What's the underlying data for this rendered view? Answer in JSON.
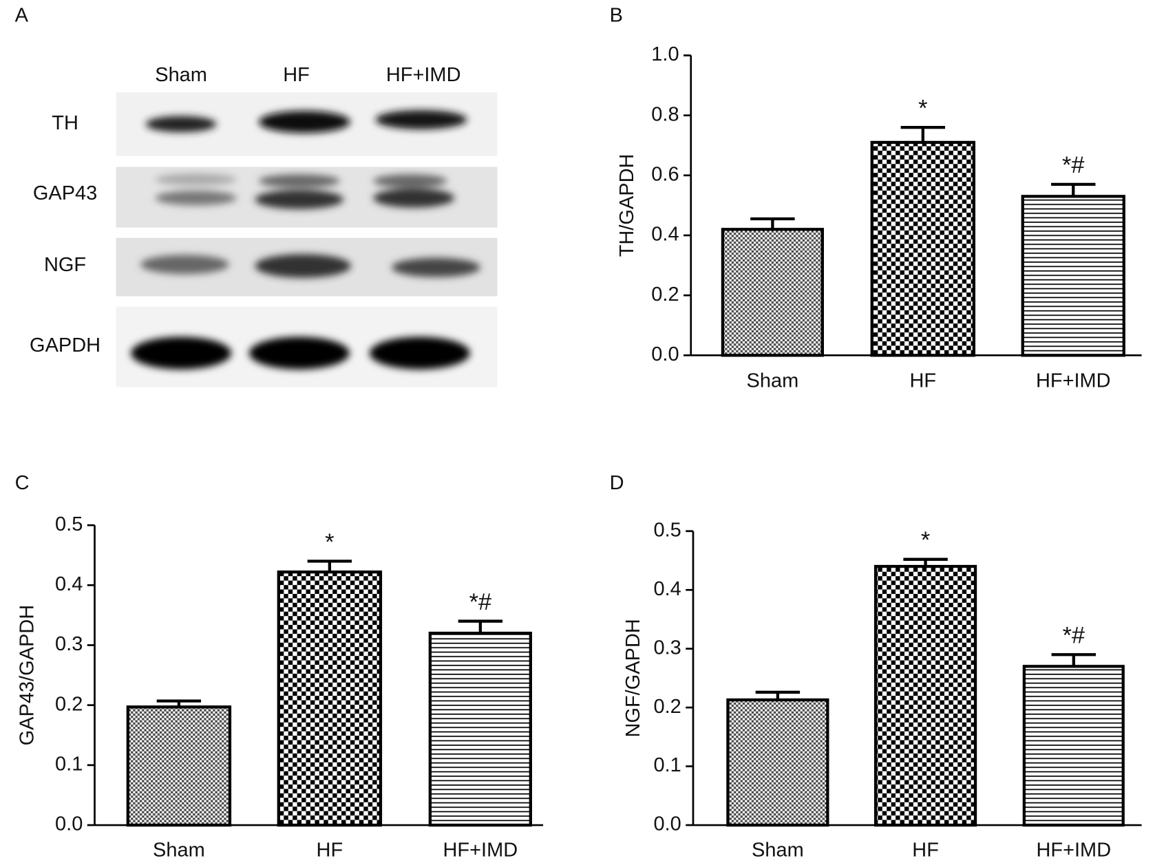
{
  "blot": {
    "panel_label": "A",
    "lanes": [
      "Sham",
      "HF",
      "HF+IMD"
    ],
    "rows": [
      "TH",
      "GAP43",
      "NGF",
      "GAPDH"
    ]
  },
  "chart_data": [
    {
      "type": "bar",
      "panel_label": "B",
      "ylabel": "TH/GAPDH",
      "categories": [
        "Sham",
        "HF",
        "HF+IMD"
      ],
      "values": [
        0.42,
        0.71,
        0.53
      ],
      "errors": [
        0.035,
        0.05,
        0.04
      ],
      "color": "#000000",
      "hatches": [
        "dense",
        "checker",
        "horizontal"
      ],
      "annotations": [
        {
          "text": "*",
          "x": "HF"
        },
        {
          "text": "*#",
          "x": "HF+IMD"
        }
      ],
      "ylim": [
        0,
        1
      ],
      "yticks": [
        {
          "value": 0,
          "label": "0.0"
        },
        0.2,
        0.4,
        0.6,
        0.8,
        {
          "value": 1,
          "label": "1.0"
        }
      ]
    },
    {
      "type": "bar",
      "panel_label": "C",
      "ylabel": "GAP43/GAPDH",
      "categories": [
        "Sham",
        "HF",
        "HF+IMD"
      ],
      "values": [
        0.197,
        0.422,
        0.32
      ],
      "errors": [
        0.01,
        0.018,
        0.02
      ],
      "color": "#000000",
      "hatches": [
        "dense",
        "checker",
        "horizontal"
      ],
      "annotations": [
        {
          "text": "*",
          "x": "HF"
        },
        {
          "text": "*#",
          "x": "HF+IMD"
        }
      ],
      "ylim": [
        0,
        0.5
      ],
      "yticks": [
        {
          "value": 0,
          "label": "0.0"
        },
        0.1,
        0.2,
        0.3,
        0.4,
        0.5
      ]
    },
    {
      "type": "bar",
      "panel_label": "D",
      "ylabel": "NGF/GAPDH",
      "categories": [
        "Sham",
        "HF",
        "HF+IMD"
      ],
      "values": [
        0.213,
        0.44,
        0.27
      ],
      "errors": [
        0.013,
        0.012,
        0.02
      ],
      "color": "#000000",
      "hatches": [
        "dense",
        "checker",
        "horizontal"
      ],
      "annotations": [
        {
          "text": "*",
          "x": "HF"
        },
        {
          "text": "*#",
          "x": "HF+IMD"
        }
      ],
      "ylim": [
        0,
        0.5
      ],
      "yticks": [
        {
          "value": 0,
          "label": "0.0"
        },
        0.1,
        0.2,
        0.3,
        0.4,
        0.5
      ]
    }
  ]
}
